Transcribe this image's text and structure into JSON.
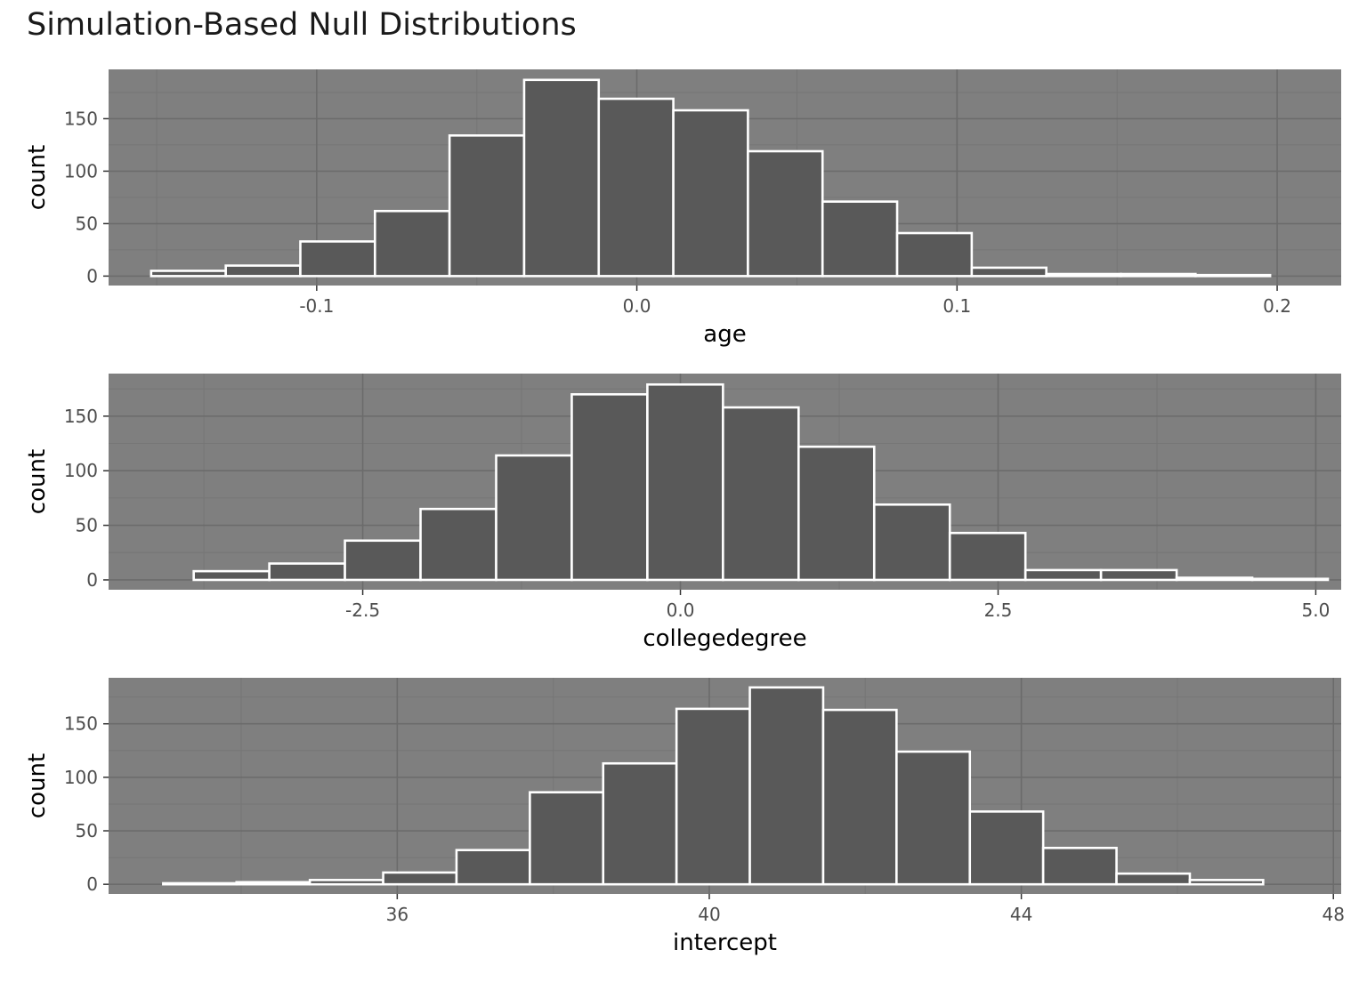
{
  "title": "Simulation-Based Null Distributions",
  "colors": {
    "panel_background": "#7f7f7f",
    "grid_major": "#6b6b6b",
    "grid_minor": "#767676",
    "bar_fill": "#595959",
    "bar_outline": "#ffffff",
    "tick_text": "#4d4d4d"
  },
  "chart_data": [
    {
      "type": "bar",
      "subtype": "histogram",
      "xlabel": "age",
      "ylabel": "count",
      "xlim": [
        -0.165,
        0.22
      ],
      "ylim": [
        -9,
        197
      ],
      "grid": true,
      "x_ticks": [
        -0.1,
        0.0,
        0.1,
        0.2
      ],
      "x_tick_labels": [
        "-0.1",
        "0.0",
        "0.1",
        "0.2"
      ],
      "y_ticks": [
        0,
        50,
        100,
        150
      ],
      "y_tick_labels": [
        "0",
        "50",
        "100",
        "150"
      ],
      "bin_edges": [
        -0.1517,
        -0.1284,
        -0.1051,
        -0.0818,
        -0.0585,
        -0.0352,
        -0.0119,
        0.0114,
        0.0347,
        0.058,
        0.0813,
        0.1046,
        0.1279,
        0.1512,
        0.1745,
        0.1978
      ],
      "values": [
        5,
        10,
        33,
        62,
        134,
        187,
        169,
        158,
        119,
        71,
        41,
        8,
        2,
        2,
        1
      ]
    },
    {
      "type": "bar",
      "subtype": "histogram",
      "xlabel": "collegedegree",
      "ylabel": "count",
      "xlim": [
        -4.5,
        5.2
      ],
      "ylim": [
        -9,
        189
      ],
      "grid": true,
      "x_ticks": [
        -2.5,
        0.0,
        2.5,
        5.0
      ],
      "x_tick_labels": [
        "-2.5",
        "0.0",
        "2.5",
        "5.0"
      ],
      "y_ticks": [
        0,
        50,
        100,
        150
      ],
      "y_tick_labels": [
        "0",
        "50",
        "100",
        "150"
      ],
      "bin_edges": [
        -3.83,
        -3.235,
        -2.64,
        -2.045,
        -1.45,
        -0.855,
        -0.26,
        0.335,
        0.93,
        1.525,
        2.12,
        2.715,
        3.31,
        3.905,
        4.5,
        5.095
      ],
      "values": [
        8,
        15,
        36,
        65,
        114,
        170,
        179,
        158,
        122,
        69,
        43,
        9,
        9,
        2,
        1
      ]
    },
    {
      "type": "bar",
      "subtype": "histogram",
      "xlabel": "intercept",
      "ylabel": "count",
      "xlim": [
        32.3,
        48.1
      ],
      "ylim": [
        -9,
        193
      ],
      "grid": true,
      "x_ticks": [
        36,
        40,
        44,
        48
      ],
      "x_tick_labels": [
        "36",
        "40",
        "44",
        "48"
      ],
      "y_ticks": [
        0,
        50,
        100,
        150
      ],
      "y_tick_labels": [
        "0",
        "50",
        "100",
        "150"
      ],
      "bin_edges": [
        33.0,
        33.94,
        34.88,
        35.82,
        36.76,
        37.7,
        38.64,
        39.58,
        40.52,
        41.46,
        42.4,
        43.34,
        44.28,
        45.22,
        46.16,
        47.1
      ],
      "values": [
        1,
        2,
        4,
        11,
        32,
        86,
        113,
        164,
        184,
        163,
        124,
        68,
        34,
        10,
        4
      ]
    }
  ]
}
